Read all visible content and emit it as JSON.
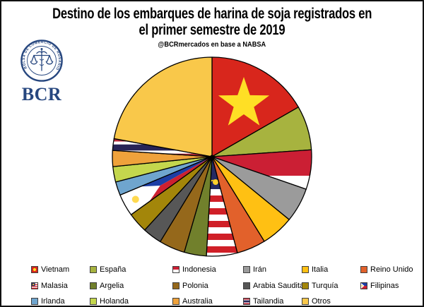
{
  "header": {
    "title_line1": "Destino de los embarques de harina de soja registrados en",
    "title_line2": "el primer semestre de 2019",
    "subtitle": "@BCRmercados en base a NABSA"
  },
  "logo": {
    "seal_text": "BOLSA DE COMERCIO DE ROSARIO",
    "acronym": "BCR",
    "color": "#27477F"
  },
  "chart_data": {
    "type": "pie",
    "title": "Destino de los embarques de harina de soja registrados en el primer semestre de 2019",
    "subtitle": "@BCRmercados en base a NABSA",
    "unit": "percent-of-shipments (estimated from slice angles)",
    "start_angle_deg": 0,
    "direction": "clockwise",
    "legend": {
      "position": "bottom",
      "rows": 3,
      "columns": 6
    },
    "slices": [
      {
        "label": "Vietnam",
        "value": 16.7,
        "fill": "flag-vietnam",
        "color": "#D8261C"
      },
      {
        "label": "España",
        "value": 7.2,
        "fill": "solid",
        "color": "#A7B33F"
      },
      {
        "label": "Indonesia",
        "value": 6.4,
        "fill": "flag-indonesia",
        "color": "#CB1F34"
      },
      {
        "label": "Irán",
        "value": 5.6,
        "fill": "solid",
        "color": "#9B9B9B"
      },
      {
        "label": "Italia",
        "value": 5.3,
        "fill": "solid",
        "color": "#FFC013"
      },
      {
        "label": "Reino Unido",
        "value": 4.7,
        "fill": "solid",
        "color": "#E2612B"
      },
      {
        "label": "Malasia",
        "value": 5.0,
        "fill": "flag-malasia",
        "color": "#D01F27"
      },
      {
        "label": "Argelia",
        "value": 3.6,
        "fill": "solid",
        "color": "#71802C"
      },
      {
        "label": "Polonia",
        "value": 4.2,
        "fill": "solid",
        "color": "#95681B"
      },
      {
        "label": "Arabia Saudita",
        "value": 3.1,
        "fill": "solid",
        "color": "#575757"
      },
      {
        "label": "Turquía",
        "value": 3.3,
        "fill": "solid",
        "color": "#A3860A"
      },
      {
        "label": "Filipinas",
        "value": 3.6,
        "fill": "flag-filipinas",
        "color": "#1D3EA5"
      },
      {
        "label": "Irlanda",
        "value": 2.2,
        "fill": "solid",
        "color": "#6FA5CE"
      },
      {
        "label": "Holanda",
        "value": 2.5,
        "fill": "solid",
        "color": "#C4D74D"
      },
      {
        "label": "Australia",
        "value": 2.6,
        "fill": "solid",
        "color": "#EFA23B"
      },
      {
        "label": "Tailandia",
        "value": 1.9,
        "fill": "flag-tailandia",
        "color": "#BE2B3C"
      },
      {
        "label": "Otros",
        "value": 22.1,
        "fill": "solid",
        "color": "#F9C84A"
      }
    ],
    "flag_colors": {
      "vietnam": {
        "red": "#D8261C",
        "yellow": "#FFDF25"
      },
      "indonesia": {
        "red": "#CB1F34",
        "white": "#FFFFFF"
      },
      "malasia": {
        "red": "#D01F27",
        "white": "#FFFFFF",
        "navy": "#252A63",
        "yellow": "#FFD02B"
      },
      "filipinas": {
        "blue": "#1D3EA5",
        "red": "#CD2030",
        "white": "#FFFFFF",
        "yellow": "#FFD950"
      },
      "tailandia": {
        "red": "#BE2B3C",
        "white": "#FFFFFF",
        "navy": "#272457"
      }
    },
    "stroke_color": "#000000",
    "swatch_border_color": "#404040"
  }
}
